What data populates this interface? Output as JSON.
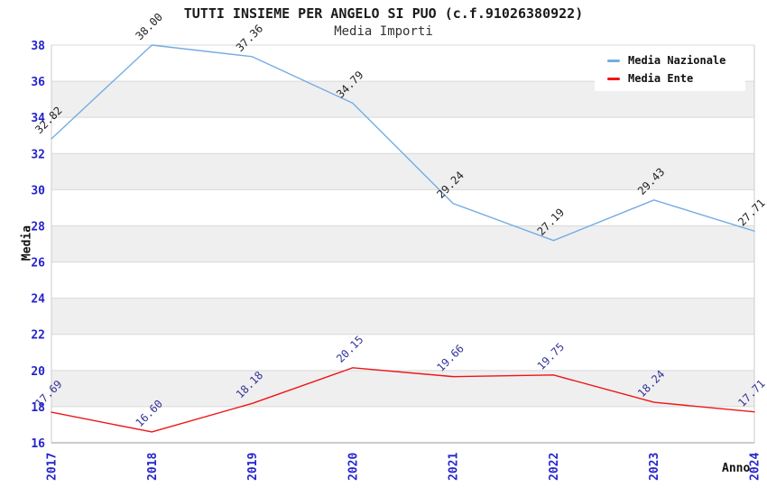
{
  "colors": {
    "axis_tick_label": "#2424CC",
    "band": "#EFEFEF",
    "gridline": "#D9D9D9",
    "axis_bottom": "#999999",
    "axis_side": "#CCCCCC",
    "title_text": "#1a1a1a",
    "subtitle_text": "#333333",
    "legend_background": "#ffffff"
  },
  "chart_data": {
    "type": "line",
    "title": "TUTTI INSIEME PER ANGELO SI PUO (c.f.91026380922)",
    "subtitle": "Media Importi",
    "xlabel": "Anno",
    "ylabel": "Media",
    "categories": [
      "2017",
      "2018",
      "2019",
      "2020",
      "2021",
      "2022",
      "2023",
      "2024"
    ],
    "series": [
      {
        "name": "Media Nazionale",
        "color": "#74ADE2",
        "label_color": "#222222",
        "values": [
          32.82,
          38.0,
          37.36,
          34.79,
          29.24,
          27.19,
          29.43,
          27.71
        ]
      },
      {
        "name": "Media Ente",
        "color": "#EE1515",
        "label_color": "#333399",
        "values": [
          17.69,
          16.6,
          18.18,
          20.15,
          19.66,
          19.75,
          18.24,
          17.71
        ]
      }
    ],
    "ylim": [
      16,
      38
    ],
    "yticks": [
      16,
      18,
      20,
      22,
      24,
      26,
      28,
      30,
      32,
      34,
      36,
      38
    ],
    "value_label_format": "2-decimals",
    "grid": true,
    "alternating_bands": true,
    "legend_position": "top-right"
  }
}
